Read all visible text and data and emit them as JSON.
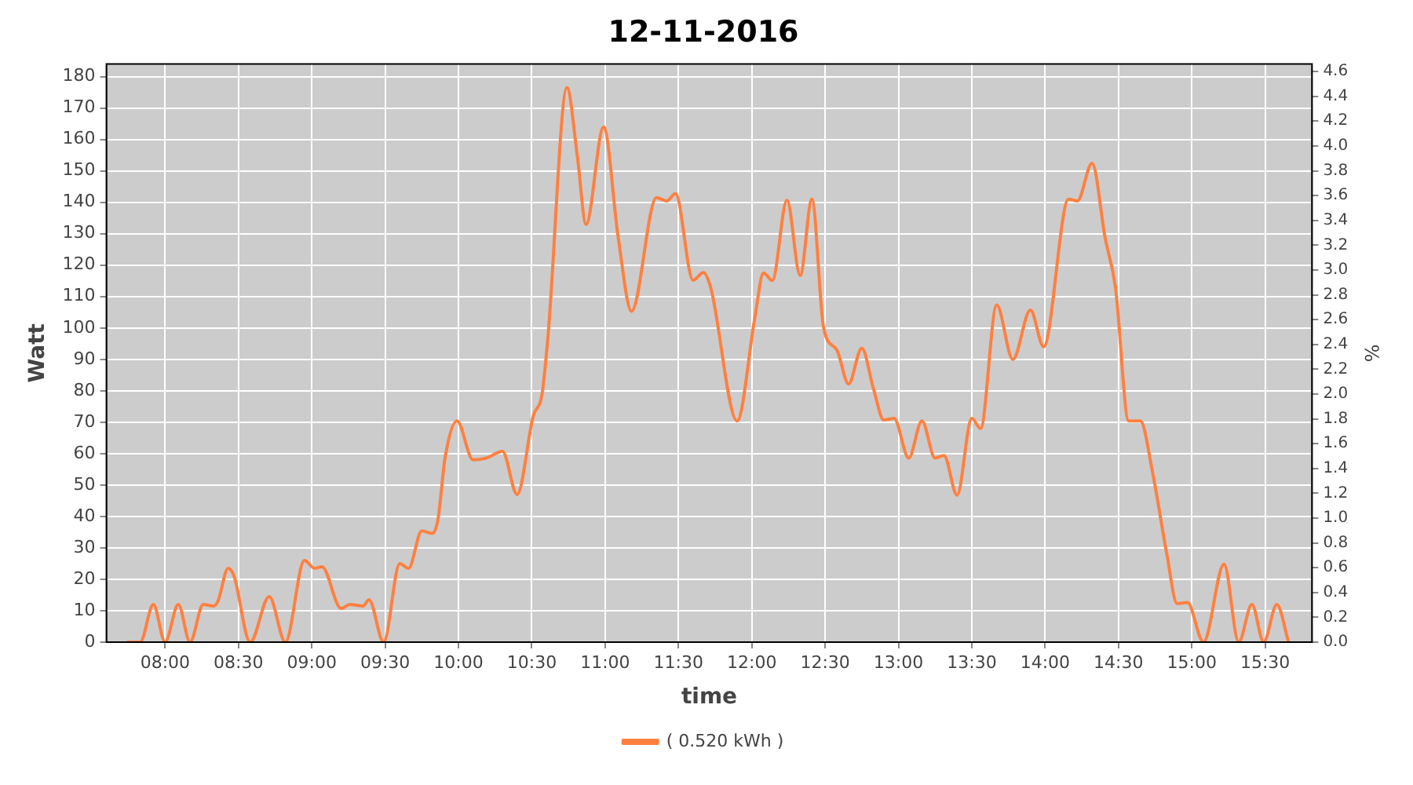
{
  "chart_data": {
    "type": "line",
    "title": "12-11-2016",
    "xlabel": "time",
    "ylabel": "Watt",
    "y2label": "%",
    "xlim": [
      7.6,
      15.82
    ],
    "ylim": [
      0,
      184
    ],
    "y2lim": [
      0,
      4.66
    ],
    "xticks": [
      {
        "value": 8,
        "label": "08:00"
      },
      {
        "value": 8.5,
        "label": "08:30"
      },
      {
        "value": 9,
        "label": "09:00"
      },
      {
        "value": 9.5,
        "label": "09:30"
      },
      {
        "value": 10,
        "label": "10:00"
      },
      {
        "value": 10.5,
        "label": "10:30"
      },
      {
        "value": 11,
        "label": "11:00"
      },
      {
        "value": 11.5,
        "label": "11:30"
      },
      {
        "value": 12,
        "label": "12:00"
      },
      {
        "value": 12.5,
        "label": "12:30"
      },
      {
        "value": 13,
        "label": "13:00"
      },
      {
        "value": 13.5,
        "label": "13:30"
      },
      {
        "value": 14,
        "label": "14:00"
      },
      {
        "value": 14.5,
        "label": "14:30"
      },
      {
        "value": 15,
        "label": "15:00"
      },
      {
        "value": 15.5,
        "label": "15:30"
      }
    ],
    "yticks": [
      0,
      10,
      20,
      30,
      40,
      50,
      60,
      70,
      80,
      90,
      100,
      110,
      120,
      130,
      140,
      150,
      160,
      170,
      180
    ],
    "y2ticks": [
      {
        "value": 0,
        "label": "0.0"
      },
      {
        "value": 0.2,
        "label": "0.2"
      },
      {
        "value": 0.4,
        "label": "0.4"
      },
      {
        "value": 0.6,
        "label": "0.6"
      },
      {
        "value": 0.8,
        "label": "0.8"
      },
      {
        "value": 1,
        "label": "1.0"
      },
      {
        "value": 1.2,
        "label": "1.2"
      },
      {
        "value": 1.4,
        "label": "1.4"
      },
      {
        "value": 1.6,
        "label": "1.6"
      },
      {
        "value": 1.8,
        "label": "1.8"
      },
      {
        "value": 2,
        "label": "2.0"
      },
      {
        "value": 2.2,
        "label": "2.2"
      },
      {
        "value": 2.4,
        "label": "2.4"
      },
      {
        "value": 2.6,
        "label": "2.6"
      },
      {
        "value": 2.8,
        "label": "2.8"
      },
      {
        "value": 3,
        "label": "3.0"
      },
      {
        "value": 3.2,
        "label": "3.2"
      },
      {
        "value": 3.4,
        "label": "3.4"
      },
      {
        "value": 3.6,
        "label": "3.6"
      },
      {
        "value": 3.8,
        "label": "3.8"
      },
      {
        "value": 4,
        "label": "4.0"
      },
      {
        "value": 4.2,
        "label": "4.2"
      },
      {
        "value": 4.4,
        "label": "4.4"
      },
      {
        "value": 4.6,
        "label": "4.6"
      }
    ],
    "grid": true,
    "legend": "bottom",
    "marker": "none",
    "line_style": "solid",
    "series": [
      {
        "name": "( 0.520 kWh )",
        "color": "#ff8040",
        "x": [
          7.74,
          7.83,
          7.92,
          8.0,
          8.09,
          8.17,
          8.26,
          8.33,
          8.36,
          8.43,
          8.47,
          8.58,
          8.71,
          8.82,
          8.95,
          9.02,
          9.07,
          9.2,
          9.26,
          9.35,
          9.39,
          9.49,
          9.6,
          9.66,
          9.75,
          9.82,
          9.86,
          9.91,
          9.99,
          10.1,
          10.19,
          10.3,
          10.4,
          10.51,
          10.57,
          10.61,
          10.74,
          10.81,
          10.87,
          10.99,
          11.09,
          11.18,
          11.35,
          11.42,
          11.48,
          11.6,
          11.67,
          11.72,
          11.9,
          12.02,
          12.08,
          12.14,
          12.24,
          12.33,
          12.41,
          12.49,
          12.58,
          12.66,
          12.75,
          12.83,
          12.9,
          12.97,
          13.07,
          13.16,
          13.25,
          13.31,
          13.4,
          13.5,
          13.56,
          13.67,
          13.78,
          13.9,
          13.99,
          14.16,
          14.22,
          14.32,
          14.41,
          14.48,
          14.57,
          14.65,
          14.73,
          14.83,
          14.9,
          14.97,
          15.08,
          15.22,
          15.32,
          15.41,
          15.49,
          15.58,
          15.66
        ],
        "values": [
          0,
          0,
          12,
          0,
          12,
          0,
          12,
          11.5,
          13,
          23.5,
          21,
          0,
          14.5,
          0,
          26,
          23.5,
          24,
          10.7,
          12,
          11.5,
          13.5,
          0,
          25,
          23.5,
          35.4,
          34.6,
          39,
          59,
          70.4,
          58,
          58.6,
          60.7,
          47,
          72,
          79,
          97,
          176.5,
          155,
          133,
          164,
          128.6,
          105.3,
          141.5,
          140.4,
          142.8,
          115.2,
          117.6,
          112.8,
          70.4,
          103,
          117.5,
          115.1,
          140.7,
          116.7,
          141,
          100,
          93,
          82.2,
          93.6,
          80.6,
          70.7,
          71.2,
          58.6,
          70.4,
          58.6,
          59.4,
          46.8,
          71.2,
          68,
          107.3,
          90,
          105.7,
          94,
          141,
          140.4,
          152.4,
          128.5,
          112.8,
          70.4,
          70.4,
          54.7,
          28,
          12.3,
          12.6,
          0,
          24.8,
          0,
          12,
          0,
          12,
          0
        ]
      }
    ]
  }
}
